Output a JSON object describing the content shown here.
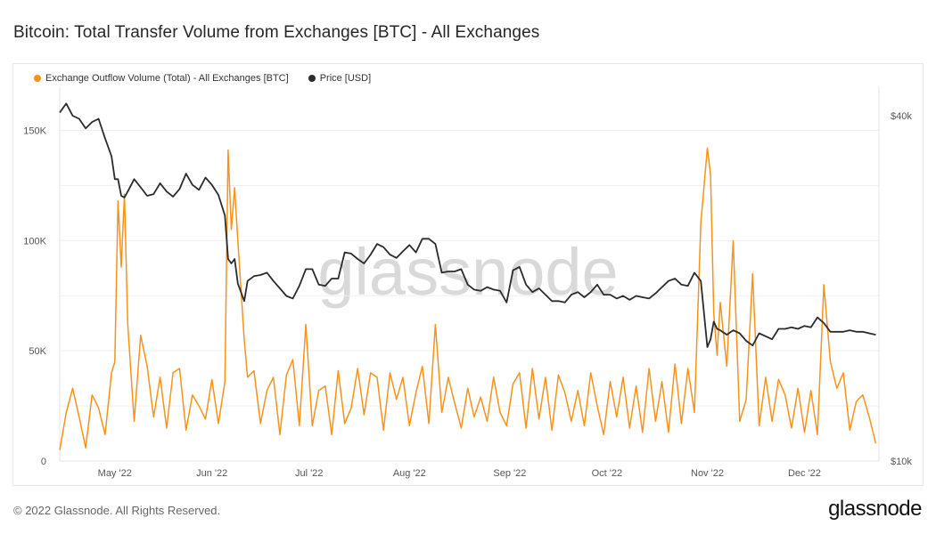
{
  "title": "Bitcoin: Total Transfer Volume from Exchanges [BTC] - All Exchanges",
  "watermark": "glassnode",
  "footer": {
    "copyright": "© 2022 Glassnode. All Rights Reserved.",
    "logo": "glassnode"
  },
  "colors": {
    "outflow": "#f7931a",
    "price": "#2b2b2b",
    "grid": "#efefef",
    "watermark": "#d9d9d9"
  },
  "chart_data": {
    "type": "line",
    "legend": [
      "Exchange Outflow Volume (Total) - All Exchanges [BTC]",
      "Price [USD]"
    ],
    "legend_position": "top-left",
    "x_ticks": [
      "May '22",
      "Jun '22",
      "Jul '22",
      "Aug '22",
      "Sep '22",
      "Oct '22",
      "Nov '22",
      "Dec '22"
    ],
    "x_range": [
      "2022-04-22",
      "2022-12-31"
    ],
    "y_left": {
      "ticks": [
        "0",
        "50K",
        "100K",
        "150K"
      ],
      "tick_values": [
        0,
        50000,
        100000,
        150000
      ],
      "range": [
        0,
        170000
      ]
    },
    "y_right": {
      "ticks": [
        "$10k",
        "$40k"
      ],
      "tick_values": [
        10000,
        40000
      ],
      "range": [
        10000,
        45000
      ],
      "scale": "log"
    },
    "grid": true,
    "series": [
      {
        "name": "Exchange Outflow Volume (Total) - All Exchanges [BTC]",
        "axis": "left",
        "color": "#f7931a",
        "x": [
          "2022-04-22",
          "2022-04-24",
          "2022-04-26",
          "2022-04-28",
          "2022-04-30",
          "2022-05-02",
          "2022-05-04",
          "2022-05-06",
          "2022-05-08",
          "2022-05-09",
          "2022-05-10",
          "2022-05-11",
          "2022-05-12",
          "2022-05-13",
          "2022-05-15",
          "2022-05-17",
          "2022-05-19",
          "2022-05-21",
          "2022-05-23",
          "2022-05-25",
          "2022-05-27",
          "2022-05-29",
          "2022-05-31",
          "2022-06-02",
          "2022-06-04",
          "2022-06-06",
          "2022-06-08",
          "2022-06-10",
          "2022-06-12",
          "2022-06-13",
          "2022-06-14",
          "2022-06-15",
          "2022-06-16",
          "2022-06-18",
          "2022-06-19",
          "2022-06-21",
          "2022-06-23",
          "2022-06-25",
          "2022-06-27",
          "2022-06-29",
          "2022-07-01",
          "2022-07-03",
          "2022-07-05",
          "2022-07-07",
          "2022-07-09",
          "2022-07-11",
          "2022-07-13",
          "2022-07-15",
          "2022-07-17",
          "2022-07-19",
          "2022-07-21",
          "2022-07-23",
          "2022-07-25",
          "2022-07-27",
          "2022-07-29",
          "2022-07-31",
          "2022-08-02",
          "2022-08-04",
          "2022-08-06",
          "2022-08-08",
          "2022-08-10",
          "2022-08-12",
          "2022-08-14",
          "2022-08-16",
          "2022-08-18",
          "2022-08-20",
          "2022-08-22",
          "2022-08-24",
          "2022-08-26",
          "2022-08-28",
          "2022-08-30",
          "2022-09-01",
          "2022-09-03",
          "2022-09-05",
          "2022-09-07",
          "2022-09-09",
          "2022-09-11",
          "2022-09-13",
          "2022-09-15",
          "2022-09-17",
          "2022-09-19",
          "2022-09-21",
          "2022-09-23",
          "2022-09-25",
          "2022-09-27",
          "2022-09-29",
          "2022-10-01",
          "2022-10-03",
          "2022-10-05",
          "2022-10-07",
          "2022-10-09",
          "2022-10-11",
          "2022-10-13",
          "2022-10-15",
          "2022-10-17",
          "2022-10-19",
          "2022-10-21",
          "2022-10-23",
          "2022-10-25",
          "2022-10-27",
          "2022-10-29",
          "2022-10-31",
          "2022-11-02",
          "2022-11-04",
          "2022-11-06",
          "2022-11-08",
          "2022-11-09",
          "2022-11-10",
          "2022-11-11",
          "2022-11-12",
          "2022-11-14",
          "2022-11-16",
          "2022-11-18",
          "2022-11-20",
          "2022-11-22",
          "2022-11-24",
          "2022-11-26",
          "2022-11-28",
          "2022-11-30",
          "2022-12-02",
          "2022-12-04",
          "2022-12-06",
          "2022-12-08",
          "2022-12-10",
          "2022-12-12",
          "2022-12-14",
          "2022-12-16",
          "2022-12-18",
          "2022-12-20",
          "2022-12-22",
          "2022-12-24",
          "2022-12-26",
          "2022-12-28",
          "2022-12-30"
        ],
        "values": [
          5000,
          22000,
          33000,
          20000,
          6000,
          30000,
          24000,
          12000,
          40000,
          45000,
          118000,
          88000,
          121000,
          62000,
          18000,
          57000,
          43000,
          20000,
          38000,
          15000,
          40000,
          42000,
          14000,
          30000,
          25000,
          19000,
          37000,
          17000,
          36000,
          141000,
          105000,
          124000,
          100000,
          55000,
          38000,
          41000,
          17000,
          32000,
          38000,
          12000,
          39000,
          46000,
          16000,
          62000,
          16000,
          32000,
          34000,
          12000,
          41000,
          17000,
          24000,
          42000,
          21000,
          40000,
          38000,
          14000,
          40000,
          28000,
          38000,
          16000,
          31000,
          43000,
          17000,
          62000,
          22000,
          38000,
          26000,
          15000,
          33000,
          20000,
          29000,
          18000,
          38000,
          22000,
          16000,
          35000,
          40000,
          15000,
          42000,
          19000,
          38000,
          14000,
          39000,
          31000,
          18000,
          32000,
          16000,
          40000,
          25000,
          12000,
          36000,
          20000,
          38000,
          15000,
          34000,
          13000,
          42000,
          18000,
          36000,
          13000,
          44000,
          17000,
          42000,
          22000,
          108000,
          142000,
          130000,
          67000,
          48000,
          72000,
          43000,
          100000,
          18000,
          28000,
          85000,
          16000,
          38000,
          18000,
          37000,
          30000,
          15000,
          33000,
          13000,
          32000,
          12000,
          80000,
          45000,
          33000,
          40000,
          14000,
          27000,
          30000,
          20000,
          8000
        ]
      },
      {
        "name": "Price [USD]",
        "axis": "right",
        "color": "#2b2b2b",
        "x": [
          "2022-04-22",
          "2022-04-24",
          "2022-04-26",
          "2022-04-28",
          "2022-04-30",
          "2022-05-02",
          "2022-05-04",
          "2022-05-06",
          "2022-05-08",
          "2022-05-09",
          "2022-05-10",
          "2022-05-11",
          "2022-05-12",
          "2022-05-13",
          "2022-05-15",
          "2022-05-17",
          "2022-05-19",
          "2022-05-21",
          "2022-05-23",
          "2022-05-25",
          "2022-05-27",
          "2022-05-29",
          "2022-05-31",
          "2022-06-02",
          "2022-06-04",
          "2022-06-06",
          "2022-06-08",
          "2022-06-10",
          "2022-06-12",
          "2022-06-13",
          "2022-06-14",
          "2022-06-15",
          "2022-06-16",
          "2022-06-18",
          "2022-06-19",
          "2022-06-21",
          "2022-06-23",
          "2022-06-25",
          "2022-06-27",
          "2022-06-29",
          "2022-07-01",
          "2022-07-03",
          "2022-07-05",
          "2022-07-07",
          "2022-07-09",
          "2022-07-11",
          "2022-07-13",
          "2022-07-15",
          "2022-07-17",
          "2022-07-19",
          "2022-07-21",
          "2022-07-23",
          "2022-07-25",
          "2022-07-27",
          "2022-07-29",
          "2022-07-31",
          "2022-08-02",
          "2022-08-04",
          "2022-08-06",
          "2022-08-08",
          "2022-08-10",
          "2022-08-12",
          "2022-08-14",
          "2022-08-16",
          "2022-08-18",
          "2022-08-20",
          "2022-08-22",
          "2022-08-24",
          "2022-08-26",
          "2022-08-28",
          "2022-08-30",
          "2022-09-01",
          "2022-09-03",
          "2022-09-05",
          "2022-09-07",
          "2022-09-09",
          "2022-09-11",
          "2022-09-13",
          "2022-09-15",
          "2022-09-17",
          "2022-09-19",
          "2022-09-21",
          "2022-09-23",
          "2022-09-25",
          "2022-09-27",
          "2022-09-29",
          "2022-10-01",
          "2022-10-03",
          "2022-10-05",
          "2022-10-07",
          "2022-10-09",
          "2022-10-11",
          "2022-10-13",
          "2022-10-15",
          "2022-10-17",
          "2022-10-19",
          "2022-10-21",
          "2022-10-23",
          "2022-10-25",
          "2022-10-27",
          "2022-10-29",
          "2022-10-31",
          "2022-11-02",
          "2022-11-04",
          "2022-11-06",
          "2022-11-08",
          "2022-11-09",
          "2022-11-10",
          "2022-11-11",
          "2022-11-12",
          "2022-11-14",
          "2022-11-16",
          "2022-11-18",
          "2022-11-20",
          "2022-11-22",
          "2022-11-24",
          "2022-11-26",
          "2022-11-28",
          "2022-11-30",
          "2022-12-02",
          "2022-12-04",
          "2022-12-06",
          "2022-12-08",
          "2022-12-10",
          "2022-12-12",
          "2022-12-14",
          "2022-12-16",
          "2022-12-18",
          "2022-12-20",
          "2022-12-22",
          "2022-12-24",
          "2022-12-26",
          "2022-12-28",
          "2022-12-30"
        ],
        "values": [
          40500,
          42000,
          40000,
          39500,
          38000,
          39000,
          39500,
          36500,
          34000,
          31000,
          31000,
          29000,
          28800,
          29500,
          31000,
          30000,
          29000,
          29200,
          30500,
          29500,
          28900,
          29800,
          31700,
          30300,
          29700,
          31200,
          30300,
          29100,
          26800,
          22500,
          22100,
          22500,
          20400,
          19000,
          20600,
          21000,
          21100,
          21300,
          20600,
          20000,
          19400,
          19200,
          20200,
          21600,
          21600,
          20300,
          20200,
          20800,
          20800,
          23100,
          23000,
          22500,
          22100,
          22900,
          23900,
          23600,
          22900,
          22600,
          23200,
          23800,
          23100,
          24400,
          24400,
          23900,
          21300,
          21400,
          21400,
          21600,
          20300,
          19900,
          19800,
          20100,
          19900,
          19800,
          18900,
          21500,
          21800,
          20300,
          19700,
          20000,
          19500,
          19000,
          19000,
          18900,
          19500,
          19700,
          19300,
          19700,
          20300,
          19500,
          19500,
          19200,
          19400,
          19100,
          19400,
          19300,
          19200,
          19600,
          20100,
          20600,
          20800,
          20300,
          20200,
          21300,
          20600,
          15800,
          16300,
          17500,
          17000,
          16900,
          16600,
          16900,
          16700,
          16200,
          15900,
          16700,
          16500,
          16300,
          17000,
          17000,
          17100,
          17000,
          17200,
          17100,
          17800,
          17400,
          16800,
          16800,
          16800,
          16900,
          16800,
          16800,
          16700,
          16600
        ]
      }
    ]
  }
}
